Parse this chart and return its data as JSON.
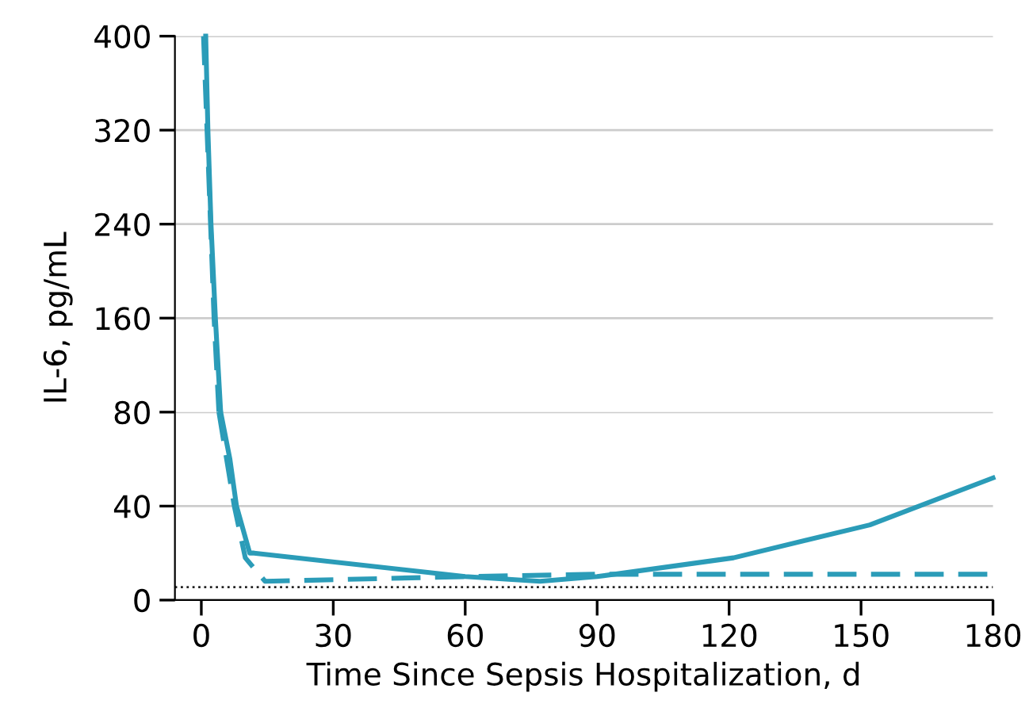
{
  "chart_data": [
    {
      "type": "line",
      "ylabel": "IL-6, pg/mL",
      "xlim": [
        -6,
        180
      ],
      "xticks": [
        0,
        30,
        60,
        90,
        120,
        150,
        180
      ],
      "ylim": [
        80,
        400
      ],
      "yticks": [
        160,
        240,
        320,
        400
      ],
      "grid": "y",
      "tick_labels": "y",
      "series": [
        {
          "color": "#2b9cb8",
          "line_style": "solid",
          "x": [
            1,
            1.5,
            2.2,
            3.2,
            4.4
          ],
          "values": [
            400,
            320,
            240,
            160,
            80
          ]
        },
        {
          "color": "#2b9cb8",
          "line_style": "dashed",
          "x": [
            0.5,
            2.9,
            4
          ],
          "values": [
            400,
            160,
            80
          ]
        }
      ]
    },
    {
      "type": "line",
      "xlabel": "Time Since Sepsis Hospitalization, d",
      "xlim": [
        -6,
        180
      ],
      "xticks": [
        0,
        30,
        60,
        90,
        120,
        150,
        180
      ],
      "ylim": [
        0,
        80
      ],
      "yticks": [
        0,
        40,
        80
      ],
      "grid": "y",
      "series": [
        {
          "color": "#2b9cb8",
          "line_style": "solid",
          "x": [
            4.4,
            6.5,
            8,
            11,
            12,
            60,
            77,
            90,
            121,
            152,
            180
          ],
          "values": [
            80,
            60,
            40,
            20,
            20,
            10,
            8,
            10,
            18,
            32,
            52
          ]
        },
        {
          "color": "#2b9cb8",
          "line_style": "dashed",
          "x": [
            4,
            7.5,
            10,
            14.5,
            60,
            90,
            180
          ],
          "values": [
            80,
            40,
            18,
            8,
            10,
            11,
            11
          ]
        }
      ],
      "ref_lines": [
        {
          "axis": "y",
          "value": 5.5,
          "color": "#222222",
          "line_style": "dotted"
        }
      ]
    }
  ]
}
